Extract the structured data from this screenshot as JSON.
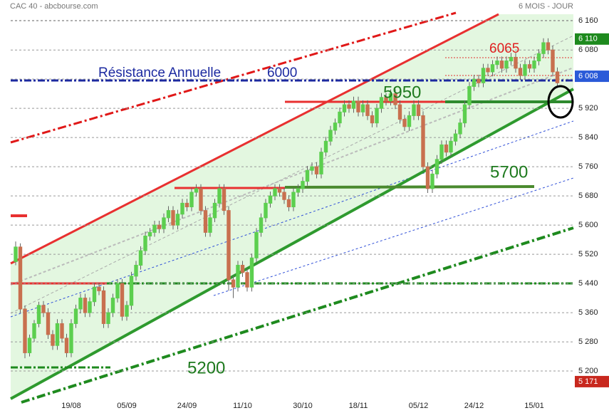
{
  "chart_data": {
    "type": "candlestick",
    "title": "CAC 40 - abcbourse.com",
    "subtitle": "6 MOIS - JOUR",
    "categories": [
      null,
      null,
      null,
      null,
      null,
      null,
      null,
      null,
      null,
      null,
      null,
      null,
      "19/08",
      null,
      null,
      null,
      null,
      null,
      null,
      null,
      null,
      null,
      null,
      null,
      "05/09",
      null,
      null,
      null,
      null,
      null,
      null,
      null,
      null,
      null,
      null,
      null,
      null,
      "24/09",
      null,
      null,
      null,
      null,
      null,
      null,
      null,
      null,
      null,
      null,
      null,
      "11/10",
      null,
      null,
      null,
      null,
      null,
      null,
      null,
      null,
      null,
      null,
      null,
      null,
      "30/10",
      null,
      null,
      null,
      null,
      null,
      null,
      null,
      null,
      null,
      null,
      null,
      "18/11",
      null,
      null,
      null,
      null,
      null,
      null,
      null,
      null,
      null,
      null,
      null,
      null,
      "05/12",
      null,
      null,
      null,
      null,
      null,
      null,
      null,
      null,
      null,
      null,
      null,
      "24/12",
      null,
      null,
      null,
      null,
      null,
      null,
      null,
      null,
      null,
      null,
      null,
      null,
      "15/01",
      null,
      null,
      null,
      null,
      null
    ],
    "candles": [
      [
        5500,
        5555,
        5490,
        5540
      ],
      [
        5540,
        5550,
        5360,
        5370
      ],
      [
        5370,
        5380,
        5235,
        5250
      ],
      [
        5250,
        5300,
        5240,
        5290
      ],
      [
        5290,
        5340,
        5280,
        5330
      ],
      [
        5330,
        5390,
        5320,
        5380
      ],
      [
        5380,
        5392,
        5348,
        5360
      ],
      [
        5360,
        5372,
        5288,
        5300
      ],
      [
        5300,
        5312,
        5258,
        5270
      ],
      [
        5270,
        5342,
        5258,
        5330
      ],
      [
        5330,
        5342,
        5278,
        5290
      ],
      [
        5290,
        5302,
        5238,
        5250
      ],
      [
        5250,
        5342,
        5238,
        5330
      ],
      [
        5330,
        5382,
        5318,
        5370
      ],
      [
        5370,
        5412,
        5358,
        5400
      ],
      [
        5400,
        5412,
        5348,
        5360
      ],
      [
        5360,
        5402,
        5348,
        5390
      ],
      [
        5390,
        5442,
        5378,
        5430
      ],
      [
        5430,
        5442,
        5408,
        5420
      ],
      [
        5420,
        5432,
        5318,
        5330
      ],
      [
        5330,
        5372,
        5318,
        5360
      ],
      [
        5360,
        5412,
        5348,
        5400
      ],
      [
        5400,
        5452,
        5388,
        5440
      ],
      [
        5440,
        5452,
        5338,
        5350
      ],
      [
        5350,
        5392,
        5338,
        5380
      ],
      [
        5380,
        5472,
        5368,
        5460
      ],
      [
        5460,
        5502,
        5448,
        5490
      ],
      [
        5490,
        5542,
        5478,
        5530
      ],
      [
        5530,
        5582,
        5518,
        5570
      ],
      [
        5570,
        5592,
        5558,
        5580
      ],
      [
        5580,
        5612,
        5568,
        5600
      ],
      [
        5600,
        5612,
        5578,
        5590
      ],
      [
        5590,
        5632,
        5578,
        5620
      ],
      [
        5620,
        5652,
        5608,
        5640
      ],
      [
        5640,
        5652,
        5588,
        5600
      ],
      [
        5600,
        5642,
        5588,
        5630
      ],
      [
        5630,
        5672,
        5618,
        5660
      ],
      [
        5660,
        5672,
        5638,
        5650
      ],
      [
        5650,
        5702,
        5638,
        5690
      ],
      [
        5690,
        5712,
        5678,
        5700
      ],
      [
        5700,
        5712,
        5628,
        5640
      ],
      [
        5640,
        5652,
        5568,
        5580
      ],
      [
        5580,
        5632,
        5568,
        5620
      ],
      [
        5620,
        5672,
        5608,
        5660
      ],
      [
        5660,
        5712,
        5648,
        5700
      ],
      [
        5700,
        5712,
        5628,
        5640
      ],
      [
        5640,
        5652,
        5420,
        5450
      ],
      [
        5450,
        5462,
        5400,
        5430
      ],
      [
        5430,
        5502,
        5418,
        5490
      ],
      [
        5490,
        5502,
        5458,
        5470
      ],
      [
        5470,
        5482,
        5418,
        5430
      ],
      [
        5430,
        5522,
        5418,
        5510
      ],
      [
        5510,
        5592,
        5498,
        5580
      ],
      [
        5580,
        5632,
        5568,
        5620
      ],
      [
        5620,
        5672,
        5608,
        5660
      ],
      [
        5660,
        5692,
        5648,
        5680
      ],
      [
        5680,
        5712,
        5668,
        5700
      ],
      [
        5700,
        5712,
        5678,
        5690
      ],
      [
        5690,
        5702,
        5658,
        5670
      ],
      [
        5670,
        5682,
        5638,
        5650
      ],
      [
        5650,
        5702,
        5638,
        5690
      ],
      [
        5690,
        5712,
        5678,
        5700
      ],
      [
        5700,
        5732,
        5688,
        5720
      ],
      [
        5720,
        5762,
        5708,
        5750
      ],
      [
        5750,
        5772,
        5738,
        5760
      ],
      [
        5760,
        5772,
        5728,
        5740
      ],
      [
        5740,
        5812,
        5728,
        5800
      ],
      [
        5800,
        5842,
        5788,
        5830
      ],
      [
        5830,
        5872,
        5818,
        5860
      ],
      [
        5860,
        5892,
        5848,
        5880
      ],
      [
        5880,
        5922,
        5868,
        5910
      ],
      [
        5910,
        5942,
        5898,
        5930
      ],
      [
        5930,
        5942,
        5908,
        5920
      ],
      [
        5920,
        5952,
        5908,
        5940
      ],
      [
        5940,
        5952,
        5898,
        5910
      ],
      [
        5910,
        5942,
        5898,
        5930
      ],
      [
        5930,
        5942,
        5888,
        5900
      ],
      [
        5900,
        5912,
        5868,
        5880
      ],
      [
        5880,
        5932,
        5868,
        5920
      ],
      [
        5920,
        5962,
        5908,
        5950
      ],
      [
        5950,
        5962,
        5928,
        5940
      ],
      [
        5940,
        5972,
        5928,
        5960
      ],
      [
        5960,
        5972,
        5918,
        5930
      ],
      [
        5930,
        5942,
        5878,
        5890
      ],
      [
        5890,
        5902,
        5858,
        5870
      ],
      [
        5870,
        5912,
        5858,
        5900
      ],
      [
        5900,
        5942,
        5888,
        5930
      ],
      [
        5930,
        5942,
        5888,
        5900
      ],
      [
        5900,
        5912,
        5748,
        5760
      ],
      [
        5760,
        5772,
        5688,
        5700
      ],
      [
        5700,
        5752,
        5688,
        5740
      ],
      [
        5740,
        5792,
        5728,
        5780
      ],
      [
        5780,
        5832,
        5768,
        5820
      ],
      [
        5820,
        5832,
        5788,
        5800
      ],
      [
        5800,
        5842,
        5788,
        5830
      ],
      [
        5830,
        5862,
        5818,
        5850
      ],
      [
        5850,
        5892,
        5838,
        5880
      ],
      [
        5880,
        5942,
        5868,
        5930
      ],
      [
        5930,
        5992,
        5918,
        5980
      ],
      [
        5980,
        6012,
        5968,
        6000
      ],
      [
        6000,
        6012,
        5978,
        5990
      ],
      [
        5990,
        6042,
        5978,
        6030
      ],
      [
        6030,
        6042,
        6008,
        6020
      ],
      [
        6020,
        6052,
        6008,
        6040
      ],
      [
        6040,
        6062,
        6028,
        6050
      ],
      [
        6050,
        6062,
        6018,
        6030
      ],
      [
        6030,
        6062,
        6018,
        6050
      ],
      [
        6050,
        6072,
        6038,
        6060
      ],
      [
        6060,
        6072,
        6018,
        6030
      ],
      [
        6030,
        6042,
        5998,
        6010
      ],
      [
        6010,
        6052,
        5998,
        6040
      ],
      [
        6040,
        6052,
        6018,
        6030
      ],
      [
        6030,
        6062,
        6018,
        6050
      ],
      [
        6050,
        6082,
        6038,
        6070
      ],
      [
        6070,
        6112,
        6058,
        6100
      ],
      [
        6100,
        6112,
        6068,
        6080
      ],
      [
        6080,
        6092,
        6008,
        6020
      ],
      [
        6020,
        6032,
        5978,
        5990
      ]
    ],
    "up_color": "#5ccf4f",
    "down_color": "#c8704f",
    "ylim": [
      5124,
      6217
    ],
    "yticks": [
      {
        "value": 5200,
        "label": "5 200"
      },
      {
        "value": 5280,
        "label": "5 280"
      },
      {
        "value": 5360,
        "label": "5 360"
      },
      {
        "value": 5440,
        "label": "5 440"
      },
      {
        "value": 5520,
        "label": "5 520"
      },
      {
        "value": 5600,
        "label": "5 600"
      },
      {
        "value": 5680,
        "label": "5 680"
      },
      {
        "value": 5760,
        "label": "5 760"
      },
      {
        "value": 5840,
        "label": "5 840"
      },
      {
        "value": 5920,
        "label": "5 920"
      },
      {
        "value": 6000,
        "label": "6 000"
      },
      {
        "value": 6080,
        "label": "6 080"
      },
      {
        "value": 6160,
        "label": "6 160"
      }
    ],
    "grid": true,
    "price_markers": [
      {
        "value": 6110,
        "label": "6 110",
        "color": "#1e8a1e"
      },
      {
        "value": 6008,
        "label": "6 008",
        "color": "#2a5ad8"
      },
      {
        "value": 5171,
        "label": "5 171",
        "color": "#c8281e"
      }
    ],
    "annotations": [
      "Résistance Annuelle",
      "6000",
      "5950",
      "5700",
      "6065",
      "5200"
    ]
  }
}
